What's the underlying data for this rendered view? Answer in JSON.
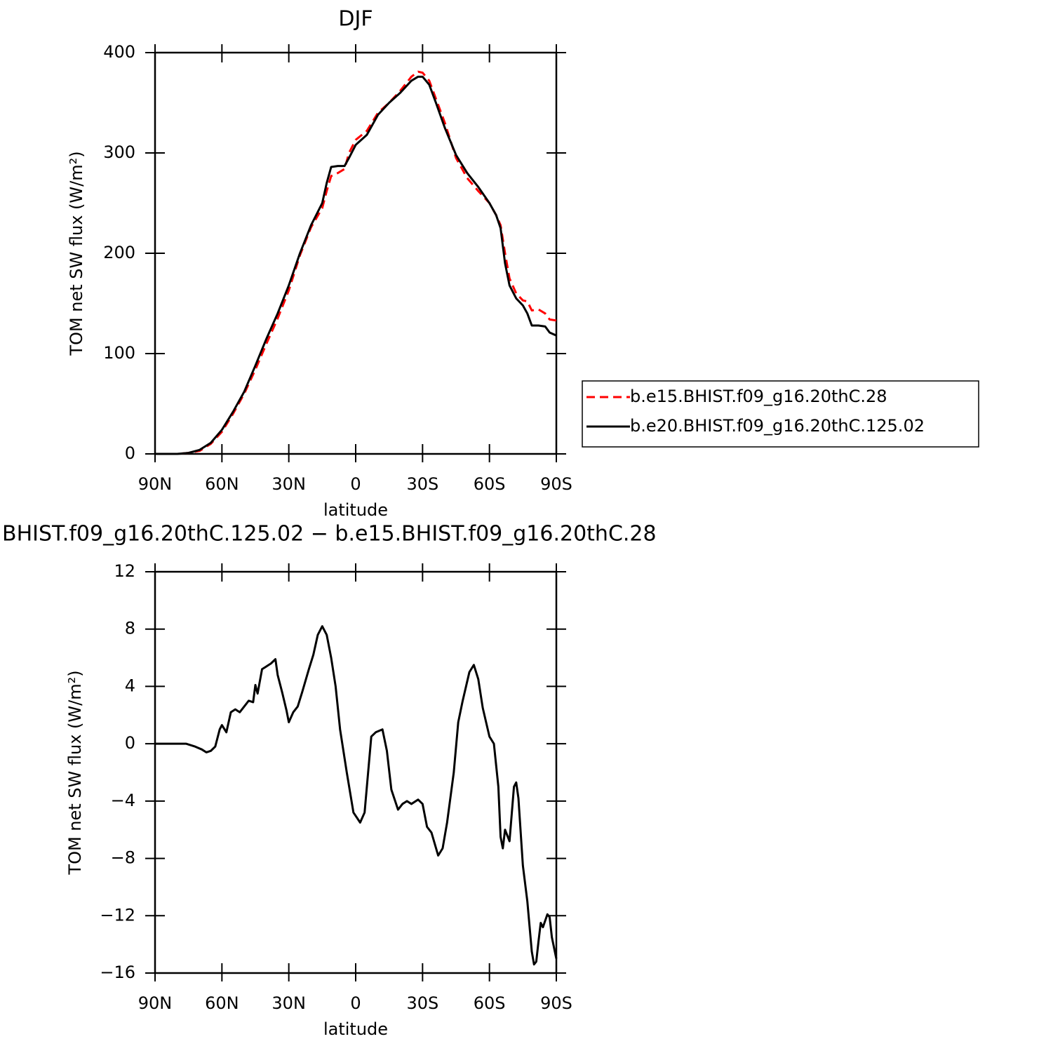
{
  "chart_data": [
    {
      "type": "line",
      "title": "DJF",
      "xlabel": "latitude",
      "ylabel": "TOM net SW flux (W/m²)",
      "xlim": [
        90,
        -90
      ],
      "xticks": [
        {
          "value": 90,
          "label": "90N"
        },
        {
          "value": 60,
          "label": "60N"
        },
        {
          "value": 30,
          "label": "30N"
        },
        0,
        {
          "value": -30,
          "label": "30S"
        },
        {
          "value": -60,
          "label": "60S"
        },
        {
          "value": -90,
          "label": "90S"
        }
      ],
      "ylim": [
        0,
        400
      ],
      "yticks": [
        0,
        100,
        200,
        300,
        400
      ],
      "legend": "right",
      "x": [
        90,
        80,
        75,
        70,
        65,
        60,
        55,
        50,
        45,
        40,
        35,
        30,
        25,
        20,
        15,
        13,
        11,
        8,
        5,
        3,
        0,
        -5,
        -10,
        -15,
        -20,
        -25,
        -28,
        -30,
        -33,
        -36,
        -40,
        -45,
        -50,
        -55,
        -60,
        -63,
        -65,
        -67,
        -69,
        -72,
        -75,
        -77,
        -79,
        -82,
        -85,
        -87,
        -90
      ],
      "series": [
        {
          "name": "b.e15.BHIST.f09_g16.20thC.28",
          "color": "#ff0000",
          "dashed": true,
          "values": [
            0,
            0,
            1,
            3,
            10,
            22,
            40,
            60,
            84,
            110,
            135,
            163,
            198,
            226,
            245,
            262,
            277,
            280,
            284,
            300,
            313,
            322,
            340,
            350,
            362,
            376,
            381,
            380,
            372,
            354,
            330,
            295,
            275,
            262,
            250,
            238,
            228,
            200,
            175,
            160,
            153,
            152,
            143,
            144,
            140,
            134,
            133
          ]
        },
        {
          "name": "b.e20.BHIST.f09_g16.20thC.125.02",
          "color": "#000000",
          "dashed": false,
          "values": [
            0,
            0,
            1,
            4,
            11,
            24,
            42,
            62,
            88,
            115,
            140,
            168,
            200,
            228,
            250,
            270,
            286,
            287,
            287,
            295,
            308,
            318,
            338,
            350,
            360,
            372,
            376,
            376,
            368,
            350,
            325,
            298,
            280,
            266,
            250,
            238,
            225,
            190,
            168,
            155,
            148,
            140,
            128,
            128,
            127,
            121,
            118
          ]
        }
      ]
    },
    {
      "type": "line",
      "title": "BHIST.f09_g16.20thC.125.02 − b.e15.BHIST.f09_g16.20thC.28",
      "xlabel": "latitude",
      "ylabel": "TOM net SW flux (W/m²)",
      "xlim": [
        90,
        -90
      ],
      "xticks": [
        {
          "value": 90,
          "label": "90N"
        },
        {
          "value": 60,
          "label": "60N"
        },
        {
          "value": 30,
          "label": "30N"
        },
        0,
        {
          "value": -30,
          "label": "30S"
        },
        {
          "value": -60,
          "label": "60S"
        },
        {
          "value": -90,
          "label": "90S"
        }
      ],
      "ylim": [
        -16,
        12
      ],
      "yticks": [
        12,
        8,
        4,
        0,
        {
          "value": -4,
          "label": "−4"
        },
        {
          "value": -8,
          "label": "−8"
        },
        {
          "value": -12,
          "label": "−12"
        },
        {
          "value": -16,
          "label": "−16"
        }
      ],
      "x": [
        90,
        76,
        72,
        69,
        67,
        65,
        63,
        61,
        60,
        58,
        56,
        54,
        52,
        50,
        48,
        46,
        45,
        44,
        42,
        40,
        38,
        36,
        35,
        33,
        31,
        30,
        28,
        26,
        24,
        21,
        19,
        17,
        15,
        13,
        11,
        9,
        7,
        4,
        1,
        -2,
        -4,
        -7,
        -9,
        -12,
        -14,
        -16,
        -19,
        -21,
        -23,
        -25,
        -28,
        -30,
        -32,
        -34,
        -37,
        -39,
        -41,
        -44,
        -46,
        -48,
        -51,
        -53,
        -55,
        -57,
        -60,
        -62,
        -64,
        -65,
        -66,
        -67,
        -69,
        -71,
        -72,
        -73,
        -75,
        -77,
        -79,
        -80,
        -81,
        -82,
        -83,
        -84,
        -86,
        -87,
        -88,
        -90
      ],
      "values": [
        0,
        0,
        -0.2,
        -0.4,
        -0.6,
        -0.5,
        -0.2,
        1.0,
        1.3,
        0.8,
        2.2,
        2.4,
        2.2,
        2.6,
        3.0,
        2.9,
        4.1,
        3.5,
        5.2,
        5.4,
        5.6,
        5.9,
        4.8,
        3.6,
        2.3,
        1.5,
        2.2,
        2.6,
        3.6,
        5.2,
        6.2,
        7.6,
        8.2,
        7.6,
        6.0,
        4.0,
        1.0,
        -2.0,
        -4.8,
        -5.5,
        -4.8,
        0.5,
        0.8,
        1.0,
        -0.5,
        -3.2,
        -4.6,
        -4.2,
        -4.0,
        -4.2,
        -3.9,
        -4.2,
        -5.8,
        -6.2,
        -7.8,
        -7.3,
        -5.5,
        -2.0,
        1.5,
        3.0,
        5.0,
        5.5,
        4.5,
        2.5,
        0.5,
        0,
        -3.0,
        -6.5,
        -7.3,
        -6.0,
        -6.8,
        -3.0,
        -2.7,
        -3.8,
        -8.5,
        -11.0,
        -14.5,
        -15.4,
        -15.2,
        -13.8,
        -12.5,
        -12.8,
        -11.9,
        -12.1,
        -13.5,
        -15.0
      ],
      "color": "#000000"
    }
  ]
}
